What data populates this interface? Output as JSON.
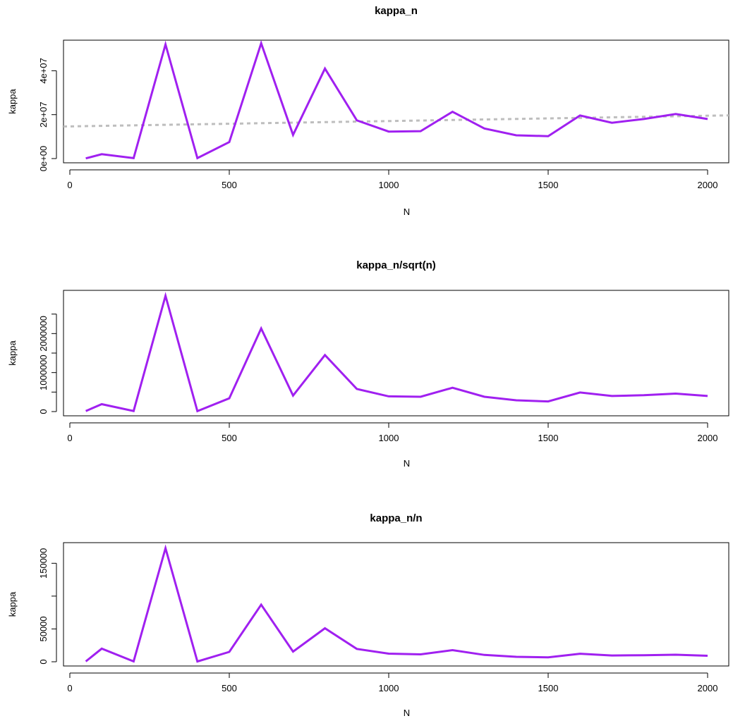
{
  "chart_data": [
    {
      "type": "line",
      "title": "kappa_n",
      "xlabel": "N",
      "ylabel": "kappa",
      "xlim": [
        0,
        2000
      ],
      "ylim": [
        0,
        52000000
      ],
      "x_ticks": [
        0,
        500,
        1000,
        1500,
        2000
      ],
      "x_tick_labels": [
        "0",
        "500",
        "1000",
        "1500",
        "2000"
      ],
      "y_ticks": [
        0,
        20000000,
        40000000
      ],
      "y_tick_labels": [
        "0e+00",
        "2e+07",
        "4e+07"
      ],
      "colors": {
        "series": "#a020f0",
        "reference": "#bebebe"
      },
      "series": [
        {
          "x": [
            50,
            100,
            200,
            300,
            400,
            500,
            600,
            700,
            800,
            900,
            1000,
            1100,
            1200,
            1300,
            1400,
            1500,
            1600,
            1700,
            1800,
            1900,
            2000
          ],
          "values": [
            100000,
            2000000,
            200000,
            52000000,
            200000,
            7500000,
            52500000,
            10800000,
            41000000,
            17400000,
            12300000,
            12500000,
            21300000,
            13700000,
            10600000,
            10200000,
            19600000,
            16300000,
            18000000,
            20300000,
            18000000
          ]
        },
        {
          "style": "dashed",
          "x": [
            -20,
            2080
          ],
          "values": [
            14600000,
            19700000
          ]
        }
      ]
    },
    {
      "type": "line",
      "title": "kappa_n/sqrt(n)",
      "xlabel": "N",
      "ylabel": "kappa",
      "xlim": [
        0,
        2000
      ],
      "ylim": [
        0,
        3000000
      ],
      "x_ticks": [
        0,
        500,
        1000,
        1500,
        2000
      ],
      "x_tick_labels": [
        "0",
        "500",
        "1000",
        "1500",
        "2000"
      ],
      "y_ticks": [
        0,
        500000,
        1000000,
        1500000,
        2000000,
        2500000
      ],
      "y_tick_labels": [
        "0",
        "",
        "1000000",
        "",
        "2000000",
        ""
      ],
      "colors": {
        "series": "#a020f0"
      },
      "series": [
        {
          "x": [
            50,
            100,
            200,
            300,
            400,
            500,
            600,
            700,
            800,
            900,
            1000,
            1100,
            1200,
            1300,
            1400,
            1500,
            1600,
            1700,
            1800,
            1900,
            2000
          ],
          "values": [
            15000,
            190000,
            15000,
            2970000,
            10000,
            340000,
            2130000,
            410000,
            1450000,
            580000,
            390000,
            380000,
            610000,
            380000,
            290000,
            260000,
            490000,
            400000,
            420000,
            460000,
            400000
          ]
        }
      ]
    },
    {
      "type": "line",
      "title": "kappa_n/n",
      "xlabel": "N",
      "ylabel": "kappa",
      "xlim": [
        0,
        2000
      ],
      "ylim": [
        0,
        175000
      ],
      "x_ticks": [
        0,
        500,
        1000,
        1500,
        2000
      ],
      "x_tick_labels": [
        "0",
        "500",
        "1000",
        "1500",
        "2000"
      ],
      "y_ticks": [
        0,
        50000,
        100000,
        150000
      ],
      "y_tick_labels": [
        "0",
        "50000",
        "",
        "150000"
      ],
      "colors": {
        "series": "#a020f0"
      },
      "series": [
        {
          "x": [
            50,
            100,
            200,
            300,
            400,
            500,
            600,
            700,
            800,
            900,
            1000,
            1100,
            1200,
            1300,
            1400,
            1500,
            1600,
            1700,
            1800,
            1900,
            2000
          ],
          "values": [
            500,
            20000,
            500,
            173000,
            400,
            15000,
            87000,
            15500,
            51000,
            19500,
            12300,
            11300,
            17700,
            10400,
            7500,
            6800,
            12200,
            9600,
            10000,
            10700,
            9100
          ]
        }
      ]
    }
  ]
}
